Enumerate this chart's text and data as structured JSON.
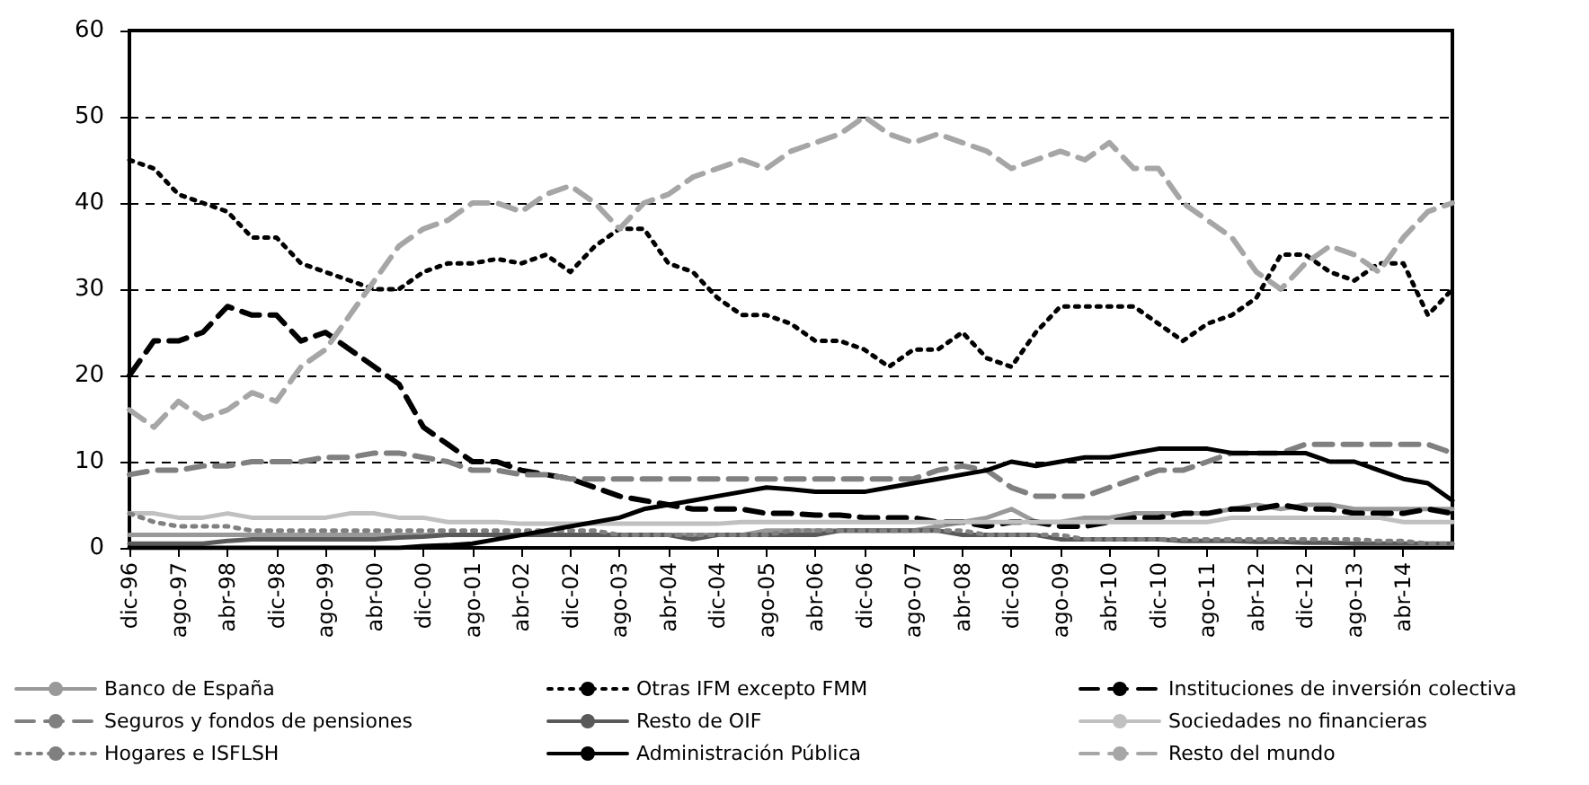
{
  "chart_data": {
    "type": "line",
    "categories": [
      "dic-96",
      null,
      "ago-97",
      null,
      "abr-98",
      null,
      "dic-98",
      null,
      "ago-99",
      null,
      "abr-00",
      null,
      "dic-00",
      null,
      "ago-01",
      null,
      "abr-02",
      null,
      "dic-02",
      null,
      "ago-03",
      null,
      "abr-04",
      null,
      "dic-04",
      null,
      "ago-05",
      null,
      "abr-06",
      null,
      "dic-06",
      null,
      "ago-07",
      null,
      "abr-08",
      null,
      "dic-08",
      null,
      "ago-09",
      null,
      "abr-10",
      null,
      "dic-10",
      null,
      "ago-11",
      null,
      "abr-12",
      null,
      "dic-12",
      null,
      "ago-13",
      null,
      "abr-14",
      null,
      null
    ],
    "series": [
      {
        "name": "Banco de España",
        "color": "#999999",
        "line_style": "solid",
        "values": [
          1.5,
          1.5,
          1.5,
          1.5,
          1.5,
          1.5,
          1.5,
          1.5,
          1.5,
          1.5,
          1.5,
          1.5,
          1.5,
          1.5,
          1.5,
          1.5,
          1.5,
          1.5,
          1.5,
          1.5,
          1.5,
          1.5,
          1.5,
          1.5,
          1.5,
          1.5,
          2,
          2,
          2,
          2,
          2,
          2,
          2,
          2.5,
          3,
          3.5,
          4.5,
          3,
          3,
          3.5,
          3.5,
          4,
          4,
          4,
          4,
          4.5,
          5,
          4.5,
          5,
          5,
          4.5,
          4.5,
          4.5,
          4.5,
          4.5
        ]
      },
      {
        "name": "Otras IFM excepto FMM",
        "color": "#000000",
        "line_style": "dotted",
        "values": [
          45,
          44,
          41,
          40,
          39,
          36,
          36,
          33,
          32,
          31,
          30,
          30,
          32,
          33,
          33,
          33.5,
          33,
          34,
          32,
          35,
          37,
          37,
          33,
          32,
          29,
          27,
          27,
          26,
          24,
          24,
          23,
          21,
          23,
          23,
          25,
          22,
          21,
          25,
          28,
          28,
          28,
          28,
          26,
          24,
          26,
          27,
          29,
          34,
          34,
          32,
          31,
          33,
          33,
          27,
          30
        ]
      },
      {
        "name": "Instituciones de inversión colectiva",
        "color": "#000000",
        "line_style": "dashed",
        "values": [
          20,
          24,
          24,
          25,
          28,
          27,
          27,
          24,
          25,
          23,
          21,
          19,
          14,
          12,
          10,
          10,
          9,
          8.5,
          8,
          7,
          6,
          5.5,
          5,
          4.5,
          4.5,
          4.5,
          4,
          4,
          3.8,
          3.8,
          3.5,
          3.5,
          3.5,
          3,
          3,
          2.5,
          3,
          3,
          2.5,
          2.5,
          3,
          3.5,
          3.5,
          4,
          4,
          4.5,
          4.5,
          5,
          4.5,
          4.5,
          4,
          4,
          4,
          4.5,
          4
        ]
      },
      {
        "name": "Seguros y fondos de pensiones",
        "color": "#808080",
        "line_style": "dashed",
        "values": [
          8.5,
          9,
          9,
          9.5,
          9.5,
          10,
          10,
          10,
          10.5,
          10.5,
          11,
          11,
          10.5,
          10,
          9,
          9,
          8.5,
          8.5,
          8,
          8,
          8,
          8,
          8,
          8,
          8,
          8,
          8,
          8,
          8,
          8,
          8,
          8,
          8,
          9,
          9.5,
          9,
          7,
          6,
          6,
          6,
          7,
          8,
          9,
          9,
          10,
          11,
          11,
          11,
          12,
          12,
          12,
          12,
          12,
          12,
          11
        ]
      },
      {
        "name": "Resto de OIF",
        "color": "#595959",
        "line_style": "solid",
        "values": [
          0.5,
          0.5,
          0.5,
          0.5,
          0.8,
          1,
          1,
          1,
          1,
          1,
          1,
          1.2,
          1.3,
          1.5,
          1.5,
          1.5,
          1.5,
          1.5,
          1.5,
          1.5,
          1.5,
          1.5,
          1.5,
          1,
          1.5,
          1.5,
          1.5,
          1.5,
          1.5,
          2,
          2,
          2,
          2,
          2,
          1.5,
          1.5,
          1.5,
          1.5,
          1,
          1,
          1,
          1,
          1,
          0.8,
          0.8,
          0.8,
          0.7,
          0.7,
          0.6,
          0.6,
          0.5,
          0.5,
          0.5,
          0.5,
          0.5
        ]
      },
      {
        "name": "Sociedades no financieras",
        "color": "#c0c0c0",
        "line_style": "solid",
        "values": [
          4,
          4,
          3.5,
          3.5,
          4,
          3.5,
          3.5,
          3.5,
          3.5,
          4,
          4,
          3.5,
          3.5,
          3,
          3,
          3,
          2.8,
          2.8,
          2.8,
          2.8,
          2.8,
          2.8,
          2.8,
          2.8,
          2.8,
          3,
          3,
          3,
          3,
          3,
          3,
          3,
          3,
          3,
          3,
          3,
          3,
          3,
          3,
          3,
          3,
          3,
          3,
          3,
          3,
          3.5,
          3.5,
          3.5,
          3.5,
          3.5,
          3.5,
          3.5,
          3,
          3,
          3
        ]
      },
      {
        "name": "Hogares e ISFLSH",
        "color": "#808080",
        "line_style": "dotted",
        "values": [
          4,
          3,
          2.5,
          2.5,
          2.5,
          2,
          2,
          2,
          2,
          2,
          2,
          2,
          2,
          2,
          2,
          2,
          2,
          2,
          2,
          2,
          1.5,
          1.5,
          1.5,
          1.5,
          1.5,
          1.5,
          1.5,
          2,
          2,
          2,
          2,
          2,
          2,
          2,
          2,
          1.5,
          1.5,
          1.5,
          1.5,
          1,
          1,
          1,
          1,
          1,
          1,
          1,
          1,
          1,
          1,
          1,
          1,
          0.8,
          0.8,
          0.5,
          0.5
        ]
      },
      {
        "name": "Administración Pública",
        "color": "#000000",
        "line_style": "solid",
        "values": [
          0,
          0,
          0,
          0,
          0,
          0,
          0,
          0,
          0,
          0,
          0,
          0,
          0.2,
          0.3,
          0.5,
          1,
          1.5,
          2,
          2.5,
          3,
          3.5,
          4.5,
          5,
          5.5,
          6,
          6.5,
          7,
          6.8,
          6.5,
          6.5,
          6.5,
          7,
          7.5,
          8,
          8.5,
          9,
          10,
          9.5,
          10,
          10.5,
          10.5,
          11,
          11.5,
          11.5,
          11.5,
          11,
          11,
          11,
          11,
          10,
          10,
          9,
          8,
          7.5,
          5.5
        ]
      },
      {
        "name": "Resto del mundo",
        "color": "#a6a6a6",
        "line_style": "dashed",
        "values": [
          16,
          14,
          17,
          15,
          16,
          18,
          17,
          21,
          23,
          27,
          31,
          35,
          37,
          38,
          40,
          40,
          39,
          41,
          42,
          40,
          37,
          40,
          41,
          43,
          44,
          45,
          44,
          46,
          47,
          48,
          50,
          48,
          47,
          48,
          47,
          46,
          44,
          45,
          46,
          45,
          47,
          44,
          44,
          40,
          38,
          36,
          32,
          30,
          33,
          35,
          34,
          32,
          36,
          39,
          40
        ]
      }
    ],
    "ylim": [
      0,
      60
    ],
    "yticks": [
      0,
      10,
      20,
      30,
      40,
      50,
      60
    ],
    "grid": "y",
    "legend": "bottom",
    "marker": "none"
  }
}
